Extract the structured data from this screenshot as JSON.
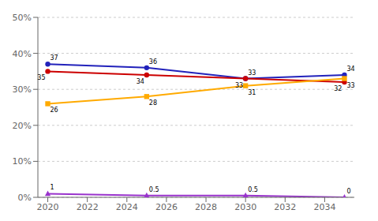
{
  "chart_data": {
    "type": "line",
    "x": [
      2020,
      2025,
      2030,
      2035
    ],
    "series": [
      {
        "color": "#2222bb",
        "values": [
          37,
          36,
          33,
          34
        ],
        "marker": "circle"
      },
      {
        "color": "#cc0000",
        "values": [
          35,
          34,
          33,
          32
        ],
        "marker": "circle"
      },
      {
        "color": "#ffaa00",
        "values": [
          26,
          28,
          31,
          33
        ],
        "marker": "square"
      },
      {
        "color": "#9933cc",
        "values": [
          1,
          0.5,
          0.5,
          0
        ],
        "marker": "triangle"
      }
    ],
    "xlim": [
      2019.5,
      2035.5
    ],
    "xticks": [
      2020,
      2022,
      2024,
      2026,
      2028,
      2030,
      2032,
      2034
    ],
    "ylim": [
      0,
      50
    ],
    "yticks": [
      {
        "value": 0,
        "label": "0%"
      },
      {
        "value": 10,
        "label": "10%"
      },
      {
        "value": 20,
        "label": "20%"
      },
      {
        "value": 30,
        "label": "30%"
      },
      {
        "value": 40,
        "label": "40%"
      },
      {
        "value": 50,
        "label": "50%"
      }
    ],
    "grid": true,
    "data_labels": true
  }
}
